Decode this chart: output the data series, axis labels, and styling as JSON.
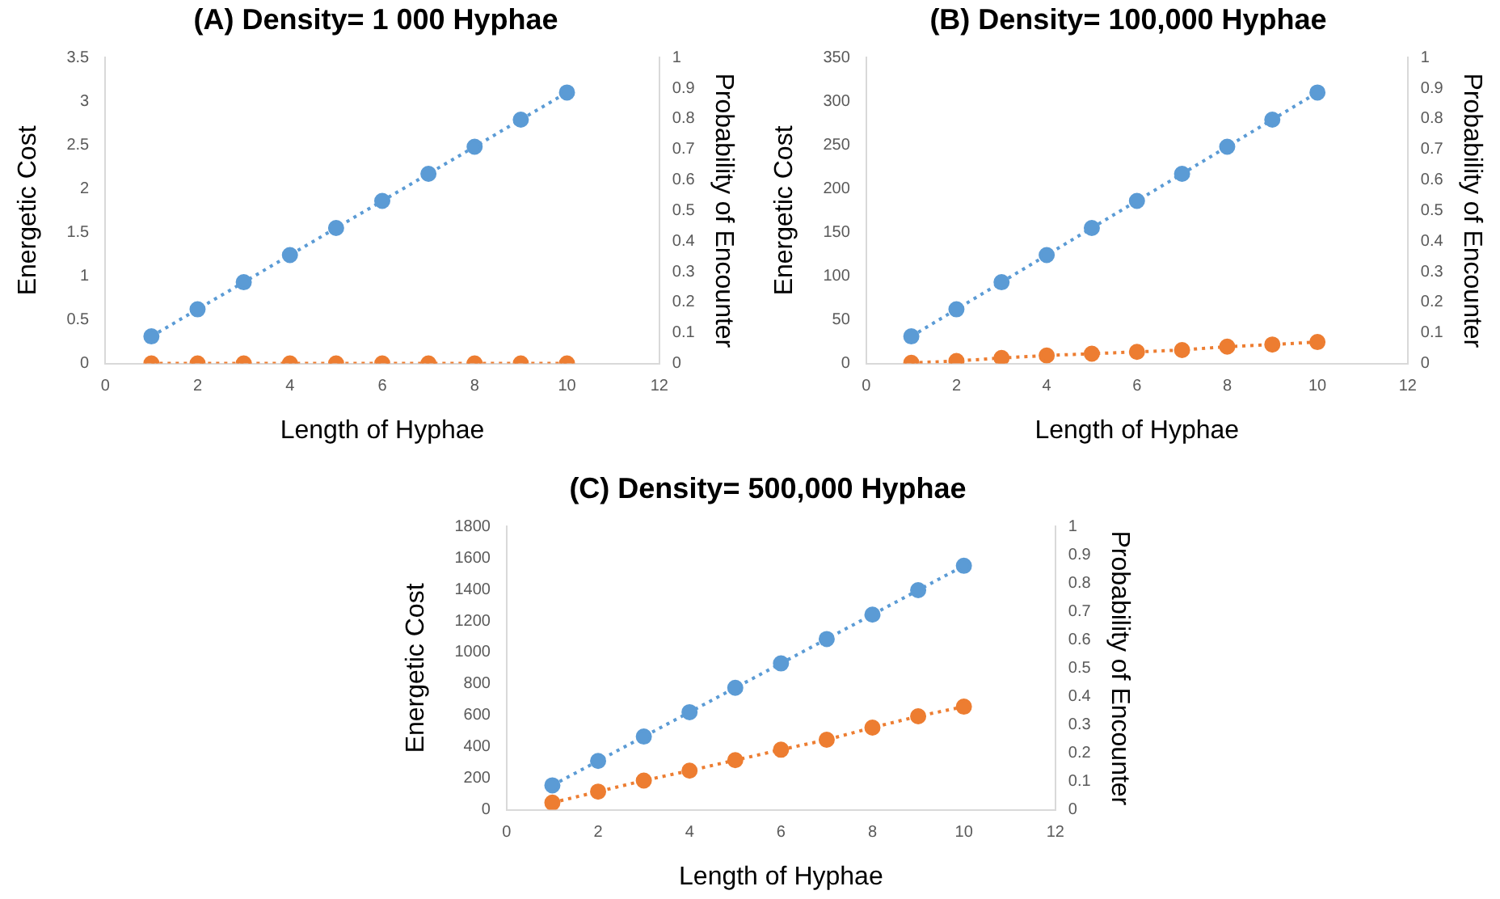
{
  "chart_data": [
    {
      "type": "line",
      "title": "(A) Density= 1 000 Hyphae",
      "xlabel": "Length of Hyphae",
      "ylabel": "Energetic Cost",
      "y2label": "Probability of Encounter",
      "x": [
        1,
        2,
        3,
        4,
        5,
        6,
        7,
        8,
        9,
        10
      ],
      "xlim": [
        0,
        12
      ],
      "xticks": [
        0,
        2,
        4,
        6,
        8,
        10,
        12
      ],
      "ylim": [
        0,
        3.5
      ],
      "yticks": [
        0,
        0.5,
        1,
        1.5,
        2,
        2.5,
        3,
        3.5
      ],
      "y2lim": [
        0,
        1
      ],
      "y2ticks": [
        0,
        0.1,
        0.2,
        0.3,
        0.4,
        0.5,
        0.6,
        0.7,
        0.8,
        0.9,
        1
      ],
      "grid": false,
      "legend": false,
      "marker": "circle",
      "line_style": "dotted",
      "series": [
        {
          "color": "#5b9bd5",
          "values": [
            0.31,
            0.62,
            0.93,
            1.24,
            1.55,
            1.86,
            2.17,
            2.48,
            2.79,
            3.1
          ]
        },
        {
          "color": "#ed7d31",
          "axis": "y2",
          "values": [
            0,
            0,
            0,
            0,
            0,
            0,
            0,
            0,
            0,
            0
          ]
        }
      ]
    },
    {
      "type": "line",
      "title": "(B) Density= 100,000 Hyphae",
      "xlabel": "Length of Hyphae",
      "ylabel": "Energetic Cost",
      "y2label": "Probability of Encounter",
      "x": [
        1,
        2,
        3,
        4,
        5,
        6,
        7,
        8,
        9,
        10
      ],
      "xlim": [
        0,
        12
      ],
      "xticks": [
        0,
        2,
        4,
        6,
        8,
        10,
        12
      ],
      "ylim": [
        0,
        350
      ],
      "yticks": [
        0,
        50,
        100,
        150,
        200,
        250,
        300,
        350
      ],
      "y2lim": [
        0,
        1
      ],
      "y2ticks": [
        0,
        0.1,
        0.2,
        0.3,
        0.4,
        0.5,
        0.6,
        0.7,
        0.8,
        0.9,
        1
      ],
      "grid": false,
      "legend": false,
      "marker": "circle",
      "line_style": "dotted",
      "series": [
        {
          "color": "#5b9bd5",
          "values": [
            31,
            62,
            93,
            124,
            155,
            186,
            217,
            248,
            279,
            310
          ]
        },
        {
          "color": "#ed7d31",
          "axis": "y2",
          "values": [
            0.002,
            0.008,
            0.018,
            0.026,
            0.032,
            0.038,
            0.044,
            0.055,
            0.062,
            0.07
          ]
        }
      ]
    },
    {
      "type": "line",
      "title": "(C) Density= 500,000 Hyphae",
      "xlabel": "Length of Hyphae",
      "ylabel": "Energetic Cost",
      "y2label": "Probability of Encounter",
      "x": [
        1,
        2,
        3,
        4,
        5,
        6,
        7,
        8,
        9,
        10
      ],
      "xlim": [
        0,
        12
      ],
      "xticks": [
        0,
        2,
        4,
        6,
        8,
        10,
        12
      ],
      "ylim": [
        0,
        1800
      ],
      "yticks": [
        0,
        200,
        400,
        600,
        800,
        1000,
        1200,
        1400,
        1600,
        1800
      ],
      "y2lim": [
        0,
        1
      ],
      "y2ticks": [
        0,
        0.1,
        0.2,
        0.3,
        0.4,
        0.5,
        0.6,
        0.7,
        0.8,
        0.9,
        1
      ],
      "grid": false,
      "legend": false,
      "marker": "circle",
      "line_style": "dotted",
      "series": [
        {
          "color": "#5b9bd5",
          "values": [
            155,
            310,
            465,
            620,
            775,
            930,
            1085,
            1240,
            1395,
            1550
          ]
        },
        {
          "color": "#ed7d31",
          "axis": "y2",
          "values": [
            0.025,
            0.064,
            0.103,
            0.138,
            0.175,
            0.212,
            0.247,
            0.29,
            0.33,
            0.364
          ]
        }
      ]
    }
  ]
}
